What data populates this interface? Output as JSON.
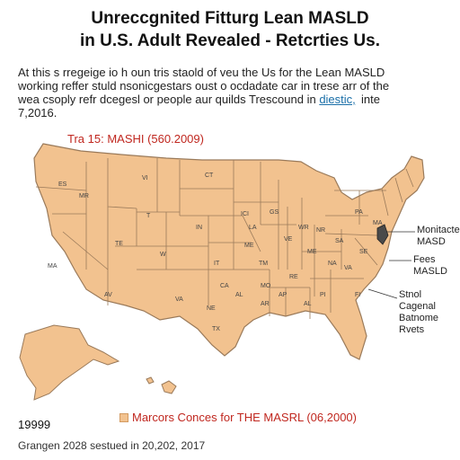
{
  "title_line1": "Unreccgnited Fitturg Lean MASLD",
  "title_line2": "in U.S. Adult Revealed - Retcrties Us.",
  "paragraph": {
    "line1": "At this s rregeige io h oun tris staold of veu the Us for the Lean MASLD",
    "line2": "working reffer stuld nsonicgestars oust o ocdadate car in trese arr of the",
    "line3_prefix": "wea csoply refr dcegesl or people aur quilds Trescound in",
    "line3_link": "diestic,",
    "line3_suffix": "inte",
    "line4": "7,2016."
  },
  "map_title": "Tra 15: MASHI (560.2009)",
  "state_labels": [
    "ES",
    "MR",
    "VI",
    "T",
    "CT",
    "IN",
    "LA",
    "ICI",
    "GS",
    "TE",
    "W",
    "IT",
    "TM",
    "AV",
    "VA",
    "MA",
    "ME",
    "VE",
    "WR",
    "NR",
    "PA",
    "MA",
    "NA",
    "SA",
    "SE",
    "ME",
    "RE",
    "PI",
    "AP",
    "MO",
    "FI",
    "AL",
    "AL",
    "CA",
    "NE",
    "AR",
    "TX",
    "VA"
  ],
  "side_labels": {
    "label1_line1": "Monitacte",
    "label1_line2": "MASD",
    "label2_line1": "Fees",
    "label2_line2": "MASLD",
    "label3_line1": "Stnol",
    "label3_line2": "Cagenal",
    "label3_line3": "Batnome",
    "label3_line4": "Rvets"
  },
  "legend_text": "Marcors Conces for THE MASRL (06,2000)",
  "footer_year": "19999",
  "footer_source": "Grangen 2028 sestued in 20,202, 2017",
  "colors": {
    "state_fill": "#f2c28f",
    "state_border": "#9a7a5a",
    "accent_red": "#c0271f",
    "link": "#1a6fa8"
  }
}
